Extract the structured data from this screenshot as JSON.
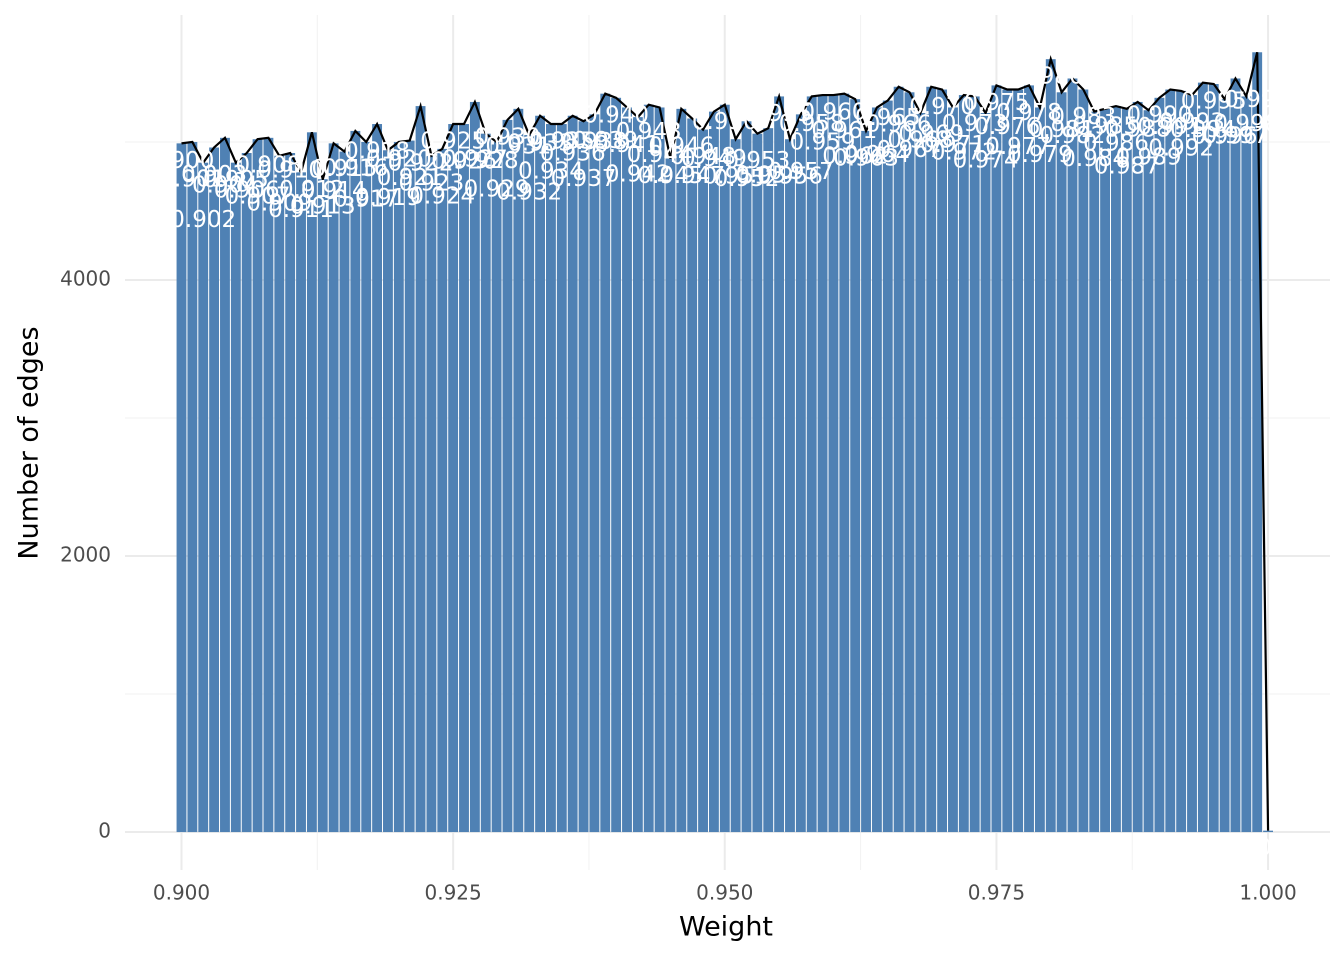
{
  "chart_data": {
    "type": "bar",
    "x_axis_label": "Weight",
    "y_axis_label": "Number of edges",
    "x": [
      0.9,
      0.901,
      0.902,
      0.903,
      0.904,
      0.905,
      0.906,
      0.907,
      0.908,
      0.909,
      0.91,
      0.911,
      0.912,
      0.913,
      0.914,
      0.915,
      0.916,
      0.917,
      0.918,
      0.919,
      0.92,
      0.921,
      0.922,
      0.923,
      0.924,
      0.925,
      0.926,
      0.927,
      0.928,
      0.929,
      0.93,
      0.931,
      0.932,
      0.933,
      0.934,
      0.935,
      0.936,
      0.937,
      0.938,
      0.939,
      0.94,
      0.941,
      0.942,
      0.943,
      0.944,
      0.945,
      0.946,
      0.947,
      0.948,
      0.949,
      0.95,
      0.951,
      0.952,
      0.953,
      0.954,
      0.955,
      0.956,
      0.957,
      0.958,
      0.959,
      0.96,
      0.961,
      0.962,
      0.963,
      0.964,
      0.965,
      0.966,
      0.967,
      0.968,
      0.969,
      0.97,
      0.971,
      0.972,
      0.973,
      0.974,
      0.975,
      0.976,
      0.977,
      0.978,
      0.979,
      0.98,
      0.981,
      0.982,
      0.983,
      0.984,
      0.985,
      0.986,
      0.987,
      0.988,
      0.989,
      0.99,
      0.991,
      0.992,
      0.993,
      0.994,
      0.995,
      0.996,
      0.997,
      0.998,
      0.999,
      1.0
    ],
    "values": [
      4990,
      5000,
      4850,
      4960,
      5030,
      4850,
      4920,
      5020,
      5030,
      4900,
      4920,
      4780,
      5070,
      4730,
      4990,
      4930,
      5080,
      5000,
      5130,
      4940,
      5000,
      5010,
      5260,
      4900,
      4950,
      5130,
      5130,
      5290,
      5060,
      5000,
      5160,
      5240,
      5050,
      5190,
      5130,
      5130,
      5190,
      5150,
      5200,
      5350,
      5320,
      5250,
      5180,
      5270,
      5250,
      4880,
      5240,
      5170,
      5090,
      5220,
      5270,
      5020,
      5150,
      5060,
      5100,
      5330,
      5020,
      5200,
      5330,
      5340,
      5340,
      5350,
      5310,
      5080,
      5250,
      5300,
      5400,
      5360,
      5210,
      5400,
      5380,
      5250,
      5340,
      5330,
      5210,
      5410,
      5380,
      5380,
      5410,
      5250,
      5600,
      5360,
      5460,
      5380,
      5220,
      5240,
      5260,
      5240,
      5290,
      5230,
      5320,
      5380,
      5370,
      5340,
      5430,
      5420,
      5310,
      5460,
      5330,
      5650,
      10
    ],
    "point_labels": [
      "0.900",
      "0.901",
      "0.902",
      "0.903",
      "0.904",
      "0.905",
      "0.906",
      "0.907",
      "0.908",
      "0.909",
      "0.910",
      "0.911",
      "0.912",
      "0.913",
      "0.914",
      "0.915",
      "0.916",
      "0.917",
      "0.918",
      "0.919",
      "0.920",
      "0.921",
      "0.922",
      "0.923",
      "0.924",
      "0.925",
      "0.926",
      "0.927",
      "0.928",
      "0.929",
      "0.930",
      "0.931",
      "0.932",
      "0.933",
      "0.934",
      "0.935",
      "0.936",
      "0.937",
      "0.938",
      "0.939",
      "0.940",
      "0.941",
      "0.942",
      "0.943",
      "0.944",
      "0.945",
      "0.946",
      "0.947",
      "0.948",
      "0.949",
      "0.950",
      "0.951",
      "0.952",
      "0.953",
      "0.954",
      "0.955",
      "0.956",
      "0.957",
      "0.958",
      "0.959",
      "0.960",
      "0.961",
      "0.962",
      "0.963",
      "0.964",
      "0.965",
      "0.966",
      "0.967",
      "0.968",
      "0.969",
      "0.970",
      "0.971",
      "0.972",
      "0.973",
      "0.974",
      "0.975",
      "0.976",
      "0.977",
      "0.978",
      "0.979",
      "0.980",
      "0.981",
      "0.982",
      "0.983",
      "0.984",
      "0.985",
      "0.986",
      "0.987",
      "0.988",
      "0.989",
      "0.990",
      "0.991",
      "0.992",
      "0.993",
      "0.994",
      "0.995",
      "0.996",
      "0.997",
      "0.998",
      "0.999",
      "1.000"
    ],
    "color": "#4f81b4",
    "line_color": "#000000",
    "xlim": [
      0.8948,
      1.0057
    ],
    "ylim": [
      -275,
      5920
    ],
    "xticks": [
      {
        "value": 0.9,
        "label": "0.900"
      },
      {
        "value": 0.925,
        "label": "0.925"
      },
      {
        "value": 0.95,
        "label": "0.950"
      },
      {
        "value": 0.975,
        "label": "0.975"
      },
      {
        "value": 1.0,
        "label": "1.000"
      }
    ],
    "x_minor_ticks": [
      0.9125,
      0.9375,
      0.9625,
      0.9875
    ],
    "yticks": [
      0,
      2000,
      4000
    ],
    "y_minor_ticks": [
      1000,
      3000,
      5000
    ],
    "grid": true
  }
}
